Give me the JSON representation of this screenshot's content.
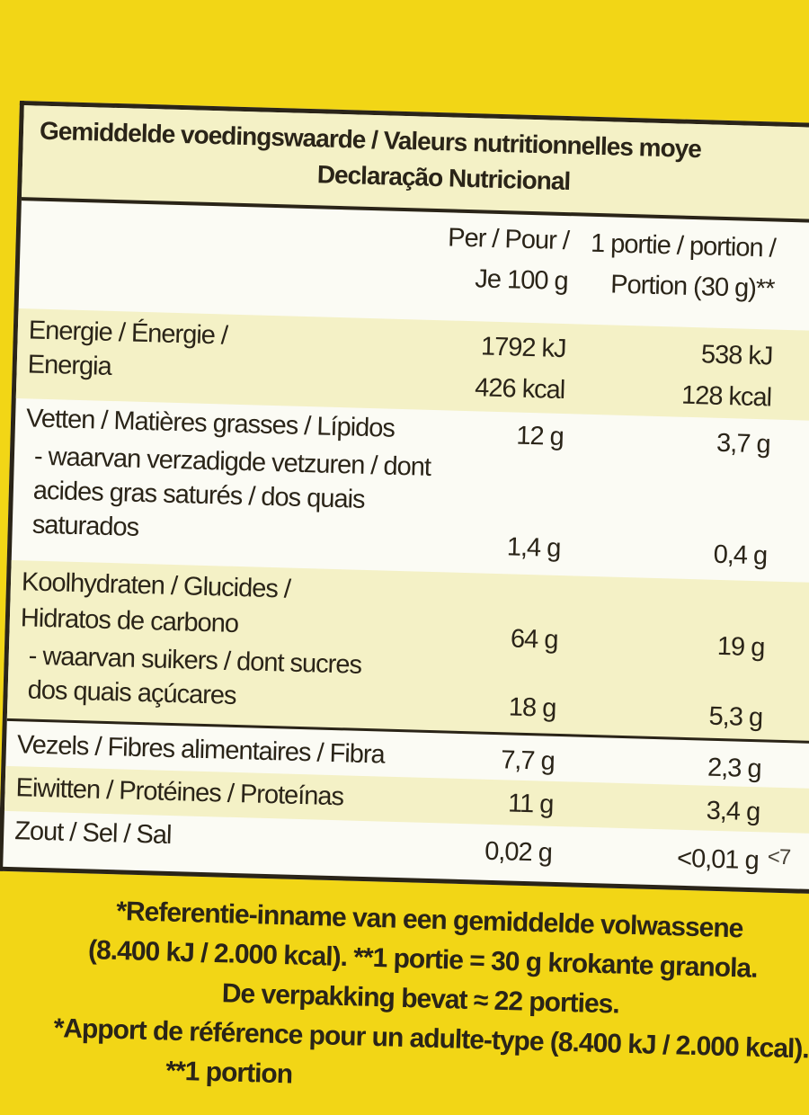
{
  "header": {
    "title_line1": "Gemiddelde voedingswaarde / Valeurs nutritionnelles moye",
    "title_line2": "Declaração Nutricional"
  },
  "columns": {
    "per100_line1": "Per / Pour /",
    "per100_line2": "Je 100 g",
    "portion_line1": "1 portie / portion /",
    "portion_line2": "Portion (30 g)**"
  },
  "rows": {
    "energy": {
      "label_line1": "Energie / Énergie /",
      "label_line2": "Energia",
      "per100_kj": "1792 kJ",
      "per100_kcal": "426 kcal",
      "portion_kj": "538 kJ",
      "portion_kcal": "128 kcal"
    },
    "fat": {
      "label": "Vetten / Matières grasses / Lípidos",
      "per100": "12 g",
      "portion": "3,7 g"
    },
    "saturates": {
      "label_line1": "- waarvan verzadigde vetzuren / dont",
      "label_line2": "acides gras saturés / dos quais",
      "label_line3": "saturados",
      "per100": "1,4 g",
      "portion": "0,4 g"
    },
    "carbs": {
      "label_line1": "Koolhydraten / Glucides /",
      "label_line2": "Hidratos de carbono",
      "per100": "64 g",
      "portion": "19 g"
    },
    "sugars": {
      "label_line1": "- waarvan suikers / dont sucres",
      "label_line2": "dos quais açúcares",
      "per100": "18 g",
      "portion": "5,3 g"
    },
    "fibre": {
      "label": "Vezels / Fibres alimentaires / Fibra",
      "per100": "7,7 g",
      "portion": "2,3 g"
    },
    "protein": {
      "label": "Eiwitten / Protéines / Proteínas",
      "per100": "11 g",
      "portion": "3,4 g"
    },
    "salt": {
      "label": "Zout / Sel / Sal",
      "per100": "0,02 g",
      "portion": "<0,01 g",
      "cut_off": "<7"
    }
  },
  "footer": {
    "line1": "*Referentie-inname van een gemiddelde volwassene",
    "line2": "(8.400 kJ / 2.000 kcal). **1 portie = 30 g krokante granola.",
    "line3": "De verpakking bevat ≈ 22 porties.",
    "line4": "*Apport de référence pour un adulte-type (8.400 kJ / 2.000 kcal).",
    "line5": "**1 portion"
  },
  "colors": {
    "package_yellow": "#f2d616",
    "label_white": "#fbfbf4",
    "stripe_cream": "#f4f1c6",
    "ink": "#2a2418"
  }
}
